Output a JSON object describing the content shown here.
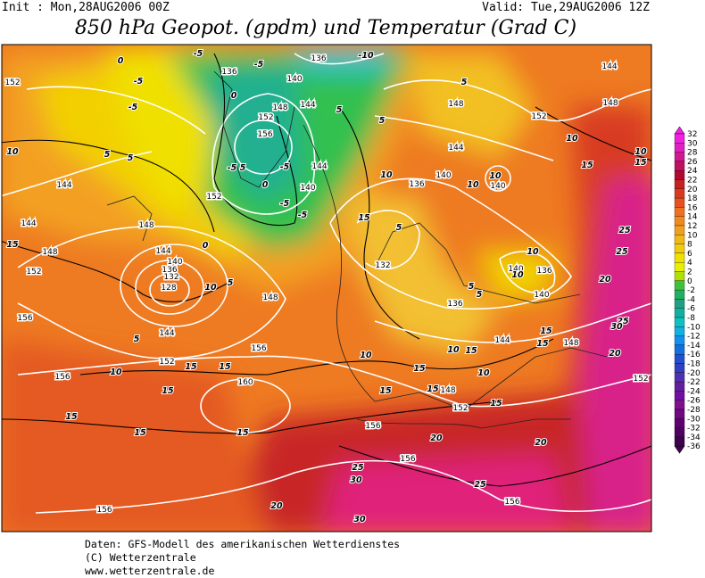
{
  "header": {
    "init": "Init : Mon,28AUG2006 00Z",
    "valid": "Valid: Tue,29AUG2006 12Z",
    "title": "850 hPa Geopot. (gpdm) und Temperatur (Grad C)"
  },
  "colorbar": {
    "labels": [
      32,
      30,
      28,
      26,
      24,
      22,
      20,
      18,
      16,
      14,
      12,
      10,
      8,
      6,
      4,
      2,
      0,
      -2,
      -4,
      -6,
      -8,
      -10,
      -12,
      -14,
      -16,
      -18,
      -20,
      -22,
      -24,
      -26,
      -28,
      -30,
      -32,
      -34,
      -36
    ]
  },
  "contour_labels": {
    "geopotential": [
      152,
      144,
      144,
      152,
      156,
      156,
      148,
      148,
      144,
      140,
      136,
      132,
      128,
      144,
      152,
      156,
      160,
      156,
      156,
      156,
      156,
      152,
      148,
      144,
      148,
      152,
      140,
      136,
      140,
      140,
      144,
      148,
      152,
      144,
      148,
      136,
      140,
      132,
      136,
      148,
      152,
      152,
      148,
      156,
      140,
      144,
      136,
      136,
      140,
      144
    ],
    "temperature": [
      10,
      5,
      5,
      15,
      0,
      -5,
      -5,
      -5,
      -5,
      0,
      -5,
      5,
      -5,
      0,
      -5,
      -5,
      0,
      10,
      5,
      5,
      10,
      15,
      15,
      15,
      15,
      15,
      15,
      5,
      5,
      5,
      -10,
      10,
      15,
      5,
      10,
      10,
      10,
      10,
      5,
      5,
      10,
      15,
      10,
      15,
      15,
      15,
      10,
      15,
      15,
      15,
      20,
      20,
      25,
      30,
      25,
      20,
      30,
      10,
      15,
      20,
      25,
      25,
      20,
      25,
      30,
      10,
      15
    ]
  },
  "footer": {
    "lines": [
      "Daten: GFS-Modell des amerikanischen Wetterdienstes",
      "(C) Wetterzentrale",
      "www.wetterzentrale.de"
    ]
  }
}
